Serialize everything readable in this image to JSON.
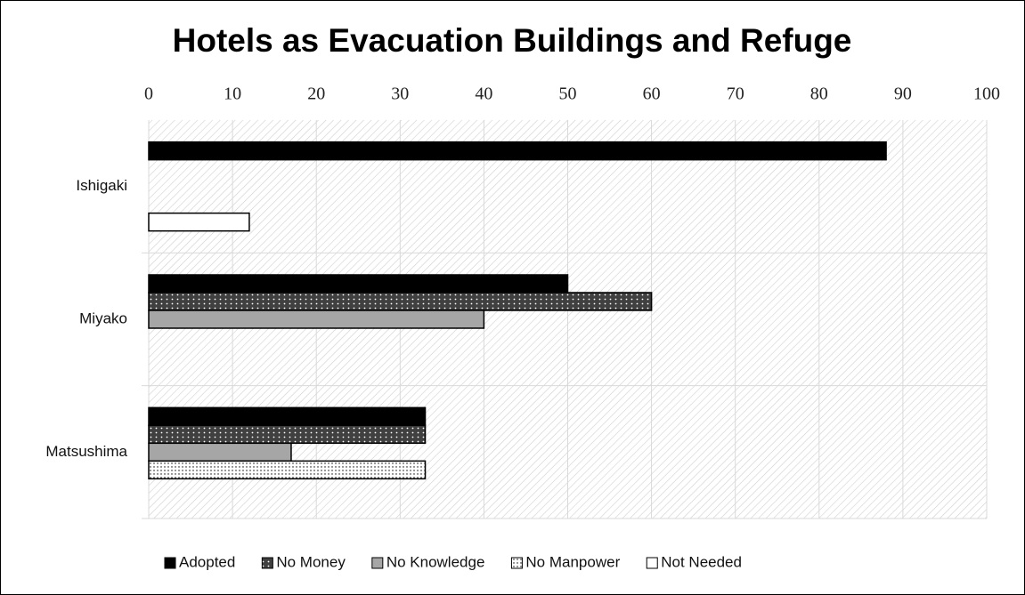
{
  "chart_data": {
    "type": "barh",
    "title": "Hotels as Evacuation Buildings and Refuge",
    "categories": [
      "Ishigaki",
      "Miyako",
      "Matsushima"
    ],
    "series": [
      {
        "name": "Adopted",
        "color": "#000000",
        "values": [
          88,
          50,
          33
        ]
      },
      {
        "name": "No Money",
        "color": "#404040",
        "values": [
          0,
          60,
          33
        ]
      },
      {
        "name": "No Knowledge",
        "color": "#a6a6a6",
        "values": [
          0,
          40,
          17
        ]
      },
      {
        "name": "No Manpower",
        "color": "#ffffff",
        "values": [
          0,
          0,
          33
        ]
      },
      {
        "name": "Not Needed",
        "color": "#ffffff",
        "values": [
          12,
          0,
          0
        ]
      }
    ],
    "xlim": [
      0,
      100
    ],
    "xticks": [
      0,
      10,
      20,
      30,
      40,
      50,
      60,
      70,
      80,
      90,
      100
    ],
    "grid": true,
    "legend": "bottom"
  }
}
